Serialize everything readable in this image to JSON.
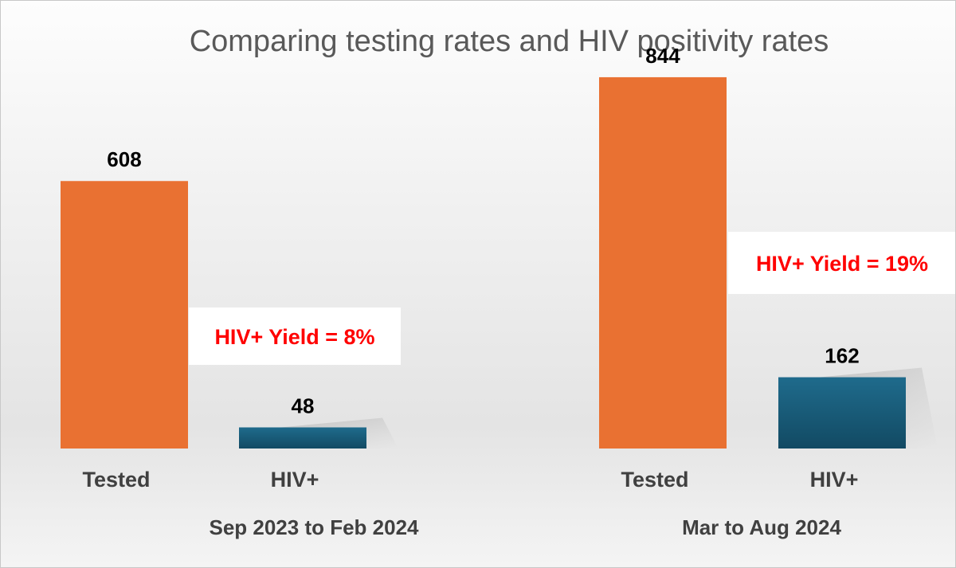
{
  "chart_data": {
    "type": "bar",
    "title": "Comparing testing rates and HIV positivity rates",
    "ylim": [
      0,
      900
    ],
    "grid": false,
    "groups": [
      {
        "label": "Sep 2023 to Feb 2024",
        "bars": [
          {
            "category": "Tested",
            "value": 608,
            "color": "#E97132"
          },
          {
            "category": "HIV+",
            "value": 48,
            "color": "#1B5E7E"
          }
        ],
        "annotation": "HIV+ Yield = 8%"
      },
      {
        "label": "Mar to Aug 2024",
        "bars": [
          {
            "category": "Tested",
            "value": 844,
            "color": "#E97132"
          },
          {
            "category": "HIV+",
            "value": 162,
            "color": "#1B5E7E"
          }
        ],
        "annotation": "HIV+ Yield = 19%"
      }
    ]
  }
}
